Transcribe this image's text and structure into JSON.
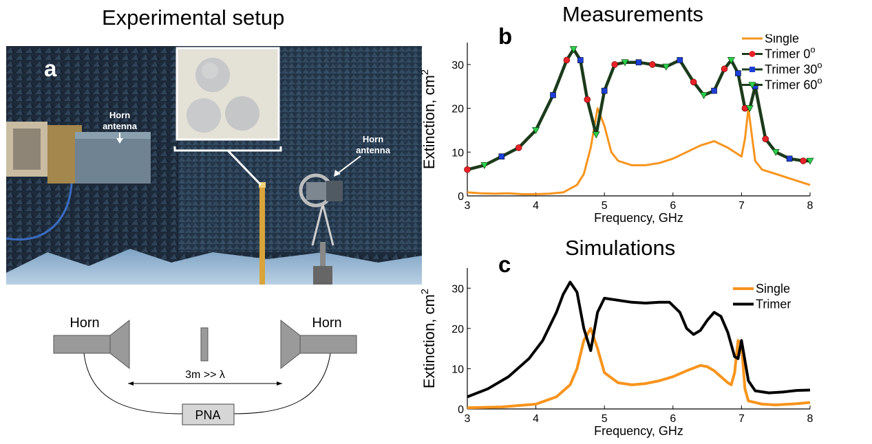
{
  "left": {
    "title": "Experimental setup",
    "panel_label": "a",
    "photo": {
      "horn_left_line1": "Horn",
      "horn_left_line2": "antenna",
      "horn_right_line1": "Horn",
      "horn_right_line2": "antenna"
    },
    "schematic": {
      "horn_left": "Horn",
      "horn_right": "Horn",
      "distance": "3m >> λ",
      "analyzer": "PNA"
    }
  },
  "chart_data": [
    {
      "type": "line",
      "title": "Measurements",
      "panel_label": "b",
      "xlabel": "Frequency, GHz",
      "ylabel": "Extinction, cm",
      "ylabel_superscript": "2",
      "xlim": [
        3,
        8
      ],
      "ylim": [
        0,
        35
      ],
      "xticks": [
        "3",
        "4",
        "5",
        "6",
        "7",
        "8"
      ],
      "yticks": [
        "0",
        "10",
        "20",
        "30"
      ],
      "grid": false,
      "legend_position": "top-right",
      "series": [
        {
          "name": "Single",
          "color": "#f7941d",
          "x": [
            3.0,
            3.2,
            3.4,
            3.6,
            3.8,
            4.0,
            4.2,
            4.4,
            4.6,
            4.7,
            4.8,
            4.9,
            5.0,
            5.1,
            5.2,
            5.4,
            5.6,
            5.8,
            6.0,
            6.2,
            6.4,
            6.6,
            6.8,
            6.9,
            7.0,
            7.05,
            7.1,
            7.15,
            7.2,
            7.3,
            7.5,
            7.7,
            7.9,
            8.0
          ],
          "y": [
            0.8,
            0.6,
            0.5,
            0.6,
            0.4,
            0.4,
            0.5,
            0.8,
            2.5,
            5,
            11,
            20,
            16,
            10,
            8,
            7,
            7,
            7.5,
            8.5,
            10,
            11.5,
            12.5,
            11,
            10,
            9,
            13,
            20,
            14,
            8,
            6,
            5,
            4,
            3,
            2.5
          ]
        },
        {
          "name": "Trimer 0",
          "name_superscript": "o",
          "color": "#e82227",
          "marker": "circle",
          "x": [
            3.0,
            3.25,
            3.5,
            3.75,
            4.0,
            4.25,
            4.45,
            4.55,
            4.65,
            4.75,
            4.88,
            5.0,
            5.15,
            5.3,
            5.5,
            5.7,
            5.9,
            6.1,
            6.3,
            6.45,
            6.6,
            6.75,
            6.85,
            6.95,
            7.05,
            7.12,
            7.2,
            7.35,
            7.5,
            7.7,
            7.9,
            8.0
          ],
          "y": [
            6,
            7,
            9,
            11,
            15,
            23,
            31,
            33.5,
            31,
            22,
            14,
            24,
            30,
            30.5,
            30.5,
            30,
            29.5,
            31,
            26,
            23,
            24,
            29,
            31,
            28,
            20,
            20,
            25,
            13,
            10,
            8.5,
            8,
            8
          ]
        },
        {
          "name": "Trimer 30",
          "name_superscript": "o",
          "color": "#1c3fd8",
          "marker": "square",
          "x": [
            3.0,
            3.25,
            3.5,
            3.75,
            4.0,
            4.25,
            4.45,
            4.55,
            4.65,
            4.75,
            4.88,
            5.0,
            5.15,
            5.3,
            5.5,
            5.7,
            5.9,
            6.1,
            6.3,
            6.45,
            6.6,
            6.75,
            6.85,
            6.95,
            7.05,
            7.12,
            7.2,
            7.35,
            7.5,
            7.7,
            7.9,
            8.0
          ],
          "y": [
            6,
            7,
            9,
            11,
            15,
            23,
            31,
            33.5,
            31,
            22,
            14,
            24,
            30,
            30.5,
            30.5,
            30,
            29.5,
            31,
            26,
            23,
            24,
            29,
            31,
            28,
            20,
            20,
            25,
            13,
            10,
            8.5,
            8,
            8
          ]
        },
        {
          "name": "Trimer 60",
          "name_superscript": "o",
          "color": "#2bd04a",
          "marker": "triangle-down",
          "x": [
            3.0,
            3.25,
            3.5,
            3.75,
            4.0,
            4.25,
            4.45,
            4.55,
            4.65,
            4.75,
            4.88,
            5.0,
            5.15,
            5.3,
            5.5,
            5.7,
            5.9,
            6.1,
            6.3,
            6.45,
            6.6,
            6.75,
            6.85,
            6.95,
            7.05,
            7.12,
            7.2,
            7.35,
            7.5,
            7.7,
            7.9,
            8.0
          ],
          "y": [
            6,
            7,
            9,
            11,
            15,
            23,
            31,
            33.5,
            31,
            22,
            14,
            24,
            30,
            30.5,
            30.5,
            30,
            29.5,
            31,
            26,
            23,
            24,
            29,
            31,
            28,
            20,
            20,
            25,
            13,
            10,
            8.5,
            8,
            8
          ]
        }
      ]
    },
    {
      "type": "line",
      "title": "Simulations",
      "panel_label": "c",
      "xlabel": "Frequency, GHz",
      "ylabel": "Extinction, cm",
      "ylabel_superscript": "2",
      "xlim": [
        3,
        8
      ],
      "ylim": [
        0,
        35
      ],
      "xticks": [
        "3",
        "4",
        "5",
        "6",
        "7",
        "8"
      ],
      "yticks": [
        "0",
        "10",
        "20",
        "30"
      ],
      "grid": false,
      "legend_position": "top-right",
      "series": [
        {
          "name": "Single",
          "color": "#f7941d",
          "x": [
            3.0,
            3.5,
            4.0,
            4.3,
            4.5,
            4.6,
            4.7,
            4.8,
            4.9,
            5.0,
            5.2,
            5.4,
            5.6,
            5.8,
            6.0,
            6.2,
            6.4,
            6.5,
            6.6,
            6.7,
            6.8,
            6.85,
            6.9,
            6.95,
            7.0,
            7.05,
            7.1,
            7.3,
            7.5,
            7.8,
            8.0
          ],
          "y": [
            0.3,
            0.5,
            1.2,
            3,
            6,
            10,
            17,
            20,
            15,
            9,
            6.5,
            6,
            6.3,
            7,
            8,
            9.5,
            10.8,
            10.5,
            9.5,
            8,
            6.5,
            6,
            9,
            17,
            16,
            5,
            2,
            1.2,
            1,
            1.3,
            1.6
          ]
        },
        {
          "name": "Trimer",
          "color": "#000000",
          "x": [
            3.0,
            3.3,
            3.6,
            3.9,
            4.1,
            4.3,
            4.4,
            4.5,
            4.6,
            4.7,
            4.8,
            4.9,
            5.0,
            5.2,
            5.4,
            5.6,
            5.8,
            5.95,
            6.1,
            6.2,
            6.3,
            6.4,
            6.5,
            6.6,
            6.7,
            6.8,
            6.9,
            6.95,
            7.0,
            7.05,
            7.1,
            7.2,
            7.4,
            7.6,
            7.8,
            8.0
          ],
          "y": [
            3,
            5,
            8,
            12.5,
            17,
            24,
            28.5,
            31.5,
            29,
            20,
            14.5,
            24,
            27.5,
            27,
            26.5,
            26.3,
            26.5,
            26.5,
            24,
            20,
            18.5,
            19.5,
            22,
            24,
            23,
            19,
            13,
            12.5,
            17,
            12,
            7,
            4.5,
            4,
            4.2,
            4.6,
            4.7
          ]
        }
      ]
    }
  ]
}
